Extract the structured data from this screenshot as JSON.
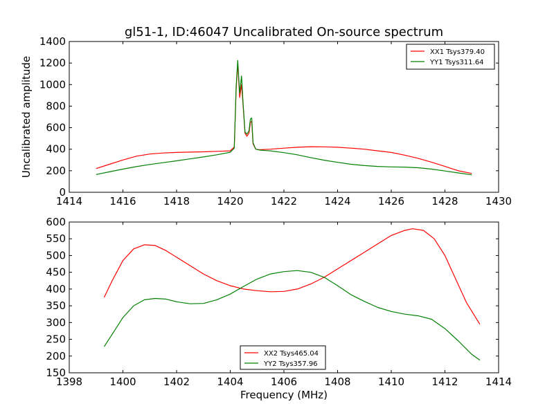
{
  "title": "gl51-1, ID:46047 Uncalibrated On-source spectrum",
  "chart_data": [
    {
      "type": "line",
      "ylabel": "Uncalibrated amplitude",
      "xlabel": "",
      "xlim": [
        1414,
        1430
      ],
      "ylim": [
        0,
        1400
      ],
      "xticks": [
        1414,
        1416,
        1418,
        1420,
        1422,
        1424,
        1426,
        1428,
        1430
      ],
      "yticks": [
        0,
        200,
        400,
        600,
        800,
        1000,
        1200,
        1400
      ],
      "grid": false,
      "legend_position": "top-right",
      "series": [
        {
          "name": "XX1 Tsys379.40",
          "color": "#ff0000",
          "x": [
            1415.0,
            1415.5,
            1416.0,
            1416.5,
            1417.0,
            1417.5,
            1418.0,
            1418.5,
            1419.0,
            1419.5,
            1420.0,
            1420.15,
            1420.22,
            1420.28,
            1420.35,
            1420.42,
            1420.48,
            1420.55,
            1420.62,
            1420.7,
            1420.75,
            1420.8,
            1420.85,
            1420.95,
            1421.1,
            1421.5,
            1422.0,
            1422.5,
            1423.0,
            1423.5,
            1424.0,
            1424.5,
            1425.0,
            1425.5,
            1426.0,
            1426.5,
            1427.0,
            1427.5,
            1428.0,
            1428.5,
            1429.0
          ],
          "values": [
            220,
            260,
            300,
            335,
            355,
            365,
            370,
            373,
            376,
            380,
            385,
            420,
            950,
            1200,
            880,
            1000,
            800,
            550,
            520,
            550,
            650,
            660,
            450,
            400,
            395,
            400,
            410,
            418,
            423,
            422,
            418,
            410,
            400,
            385,
            370,
            345,
            315,
            280,
            240,
            200,
            175
          ]
        },
        {
          "name": "YY1 Tsys311.64",
          "color": "#008000",
          "x": [
            1415.0,
            1415.5,
            1416.0,
            1416.5,
            1417.0,
            1417.5,
            1418.0,
            1418.5,
            1419.0,
            1419.5,
            1420.0,
            1420.15,
            1420.22,
            1420.28,
            1420.35,
            1420.42,
            1420.48,
            1420.55,
            1420.62,
            1420.7,
            1420.75,
            1420.8,
            1420.85,
            1420.95,
            1421.1,
            1421.5,
            1422.0,
            1422.5,
            1423.0,
            1423.5,
            1424.0,
            1424.5,
            1425.0,
            1425.5,
            1426.0,
            1426.5,
            1427.0,
            1427.5,
            1428.0,
            1428.5,
            1429.0
          ],
          "values": [
            165,
            190,
            215,
            238,
            258,
            275,
            292,
            310,
            328,
            348,
            372,
            410,
            980,
            1225,
            920,
            1080,
            820,
            560,
            540,
            570,
            680,
            690,
            460,
            400,
            392,
            385,
            368,
            348,
            322,
            298,
            278,
            260,
            248,
            240,
            236,
            234,
            228,
            215,
            198,
            180,
            162
          ]
        }
      ]
    },
    {
      "type": "line",
      "xlabel": "Frequency (MHz)",
      "ylabel": "",
      "xlim": [
        1398,
        1414
      ],
      "ylim": [
        150,
        600
      ],
      "xticks": [
        1398,
        1400,
        1402,
        1404,
        1406,
        1408,
        1410,
        1412,
        1414
      ],
      "yticks": [
        150,
        200,
        250,
        300,
        350,
        400,
        450,
        500,
        550,
        600
      ],
      "grid": false,
      "legend_position": "bottom-center",
      "series": [
        {
          "name": "XX2 Tsys465.04",
          "color": "#ff0000",
          "x": [
            1399.3,
            1399.6,
            1400.0,
            1400.4,
            1400.8,
            1401.2,
            1401.6,
            1402.0,
            1402.5,
            1403.0,
            1403.5,
            1404.0,
            1404.5,
            1405.0,
            1405.5,
            1406.0,
            1406.5,
            1407.0,
            1407.5,
            1408.0,
            1408.5,
            1409.0,
            1409.5,
            1410.0,
            1410.5,
            1410.8,
            1411.2,
            1411.6,
            1412.0,
            1412.4,
            1412.8,
            1413.3
          ],
          "values": [
            375,
            425,
            485,
            520,
            532,
            530,
            515,
            495,
            470,
            445,
            425,
            410,
            400,
            395,
            392,
            393,
            400,
            415,
            435,
            460,
            485,
            510,
            535,
            560,
            575,
            580,
            575,
            550,
            500,
            430,
            360,
            295
          ]
        },
        {
          "name": "YY2 Tsys357.96",
          "color": "#008000",
          "x": [
            1399.3,
            1399.6,
            1400.0,
            1400.4,
            1400.8,
            1401.2,
            1401.6,
            1402.0,
            1402.5,
            1403.0,
            1403.5,
            1404.0,
            1404.5,
            1405.0,
            1405.5,
            1406.0,
            1406.5,
            1407.0,
            1407.5,
            1408.0,
            1408.5,
            1409.0,
            1409.5,
            1410.0,
            1410.5,
            1411.0,
            1411.5,
            1412.0,
            1412.5,
            1413.0,
            1413.3
          ],
          "values": [
            228,
            265,
            315,
            350,
            368,
            372,
            370,
            362,
            356,
            357,
            368,
            385,
            408,
            430,
            445,
            452,
            455,
            450,
            435,
            410,
            383,
            363,
            345,
            333,
            325,
            320,
            310,
            282,
            245,
            205,
            188
          ]
        }
      ]
    }
  ]
}
